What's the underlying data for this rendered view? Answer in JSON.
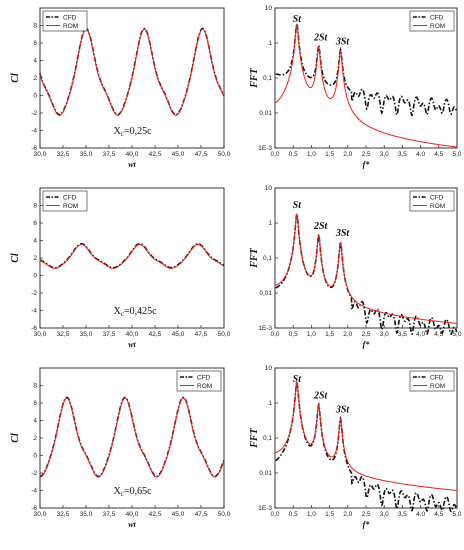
{
  "colors": {
    "cfd": "#111111",
    "rom": "#e8211b",
    "frame": "#222222"
  },
  "chart_data": [
    {
      "type": "line",
      "panel": "cl-1",
      "xlabel": "wt",
      "ylabel": "Cl",
      "xlim": [
        30,
        50
      ],
      "ylim": [
        -6,
        10
      ],
      "xticks": [
        "30,0",
        "32,5",
        "35,0",
        "37,5",
        "40,0",
        "42,5",
        "45,0",
        "47,5",
        "50,0"
      ],
      "yticks": [
        "-6",
        "-4",
        "-2",
        "0",
        "2",
        "4",
        "6",
        "8"
      ],
      "legend": [
        "CFD",
        "ROM"
      ],
      "legend_position": "top-left",
      "annotation": "X",
      "annotation_sub": "c",
      "annotation_rest": "=0,25c",
      "wave": {
        "x0": 30,
        "period": 6.33,
        "peak_x": 35.1,
        "peak": 7.4,
        "trough": -3.4,
        "mean": 2.0
      }
    },
    {
      "type": "line",
      "panel": "fft-1",
      "xlabel": "f*",
      "ylabel": "FFT",
      "log_y": true,
      "xlim": [
        0,
        5
      ],
      "ylim": [
        0.001,
        10
      ],
      "xticks": [
        "0,0",
        "0,5",
        "1,0",
        "1,5",
        "2,0",
        "2,5",
        "3,0",
        "3,5",
        "4,0",
        "4,5",
        "5,0"
      ],
      "yticks": [
        "1E-3",
        "0,01",
        "0,1",
        "1",
        "10"
      ],
      "legend": [
        "CFD",
        "ROM"
      ],
      "legend_position": "top-right",
      "peaks": [
        {
          "label": "St",
          "f": 0.6,
          "amp": 3.5
        },
        {
          "label": "2St",
          "f": 1.2,
          "amp": 0.8
        },
        {
          "label": "3St",
          "f": 1.8,
          "amp": 0.6
        }
      ],
      "rom_tail": 0.0015,
      "cfd_tail": 0.05
    },
    {
      "type": "line",
      "panel": "cl-2",
      "xlabel": "wt",
      "ylabel": "Cl",
      "xlim": [
        30,
        50
      ],
      "ylim": [
        -6,
        10
      ],
      "xticks": [
        "30,0",
        "32,5",
        "35,0",
        "37,5",
        "40,0",
        "42,5",
        "45,0",
        "47,5",
        "50,0"
      ],
      "yticks": [
        "-6",
        "-4",
        "-2",
        "0",
        "2",
        "4",
        "6",
        "8"
      ],
      "legend": [
        "CFD",
        "ROM"
      ],
      "legend_position": "top-left",
      "annotation": "X",
      "annotation_sub": "c",
      "annotation_rest": "=0,425c",
      "wave": {
        "x0": 30,
        "period": 6.33,
        "peak_x": 34.6,
        "peak": 3.5,
        "trough": 0.5,
        "mean": 2.0
      }
    },
    {
      "type": "line",
      "panel": "fft-2",
      "xlabel": "f*",
      "ylabel": "FFT",
      "log_y": true,
      "xlim": [
        0,
        5
      ],
      "ylim": [
        0.001,
        10
      ],
      "xticks": [
        "0,0",
        "0,5",
        "1,0",
        "1,5",
        "2,0",
        "2,5",
        "3,0",
        "3,5",
        "4,0",
        "4,5",
        "5,0"
      ],
      "yticks": [
        "1E-3",
        "0,01",
        "0,1",
        "1",
        "10"
      ],
      "legend": [
        "CFD",
        "ROM"
      ],
      "legend_position": "top-right",
      "peaks": [
        {
          "label": "St",
          "f": 0.6,
          "amp": 1.8
        },
        {
          "label": "2St",
          "f": 1.2,
          "amp": 0.45
        },
        {
          "label": "3St",
          "f": 1.8,
          "amp": 0.28
        }
      ],
      "rom_tail": 0.0025,
      "cfd_tail": 0.003
    },
    {
      "type": "line",
      "panel": "cl-3",
      "xlabel": "wt",
      "ylabel": "Cl",
      "xlim": [
        30,
        50
      ],
      "ylim": [
        -6,
        10
      ],
      "xticks": [
        "30,0",
        "32,5",
        "35,0",
        "37,5",
        "40,0",
        "42,5",
        "45,0",
        "47,5",
        "50,0"
      ],
      "yticks": [
        "-6",
        "-4",
        "-2",
        "0",
        "2",
        "4",
        "6",
        "8"
      ],
      "legend": [
        "CFD",
        "ROM"
      ],
      "legend_position": "top-right",
      "annotation": "X",
      "annotation_sub": "c",
      "annotation_rest": "=0,65c",
      "wave": {
        "x0": 30,
        "period": 6.33,
        "peak_x": 33.0,
        "peak": 6.4,
        "trough": -3.5,
        "mean": 2.0
      }
    },
    {
      "type": "line",
      "panel": "fft-3",
      "xlabel": "f*",
      "ylabel": "FFT",
      "log_y": true,
      "xlim": [
        0,
        5
      ],
      "ylim": [
        0.001,
        10
      ],
      "xticks": [
        "0,0",
        "0,5",
        "1,0",
        "1,5",
        "2,0",
        "2,5",
        "3,0",
        "3,5",
        "4,0",
        "4,5",
        "5,0"
      ],
      "yticks": [
        "1E-3",
        "0,01",
        "0,1",
        "1",
        "10"
      ],
      "legend": [
        "CFD",
        "ROM"
      ],
      "legend_position": "top-right",
      "peaks": [
        {
          "label": "St",
          "f": 0.6,
          "amp": 4.0
        },
        {
          "label": "2St",
          "f": 1.2,
          "amp": 0.9
        },
        {
          "label": "3St",
          "f": 1.8,
          "amp": 0.35
        }
      ],
      "rom_tail": 0.006,
      "cfd_tail": 0.003
    }
  ]
}
